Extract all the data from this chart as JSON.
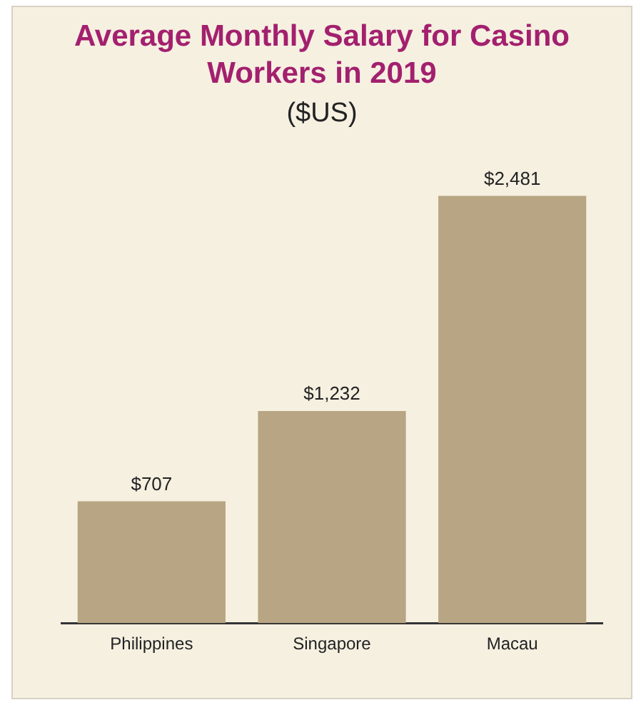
{
  "chart_data": {
    "type": "bar",
    "title": "Average Monthly Salary for Casino Workers in 2019",
    "subtitle": "($US)",
    "categories": [
      "Philippines",
      "Singapore",
      "Macau"
    ],
    "values": [
      707,
      1232,
      2481
    ],
    "value_labels": [
      "$707",
      "$1,232",
      "$2,481"
    ],
    "color": "#b8a583",
    "grid": false,
    "legend": false,
    "tick_labels": "x"
  }
}
